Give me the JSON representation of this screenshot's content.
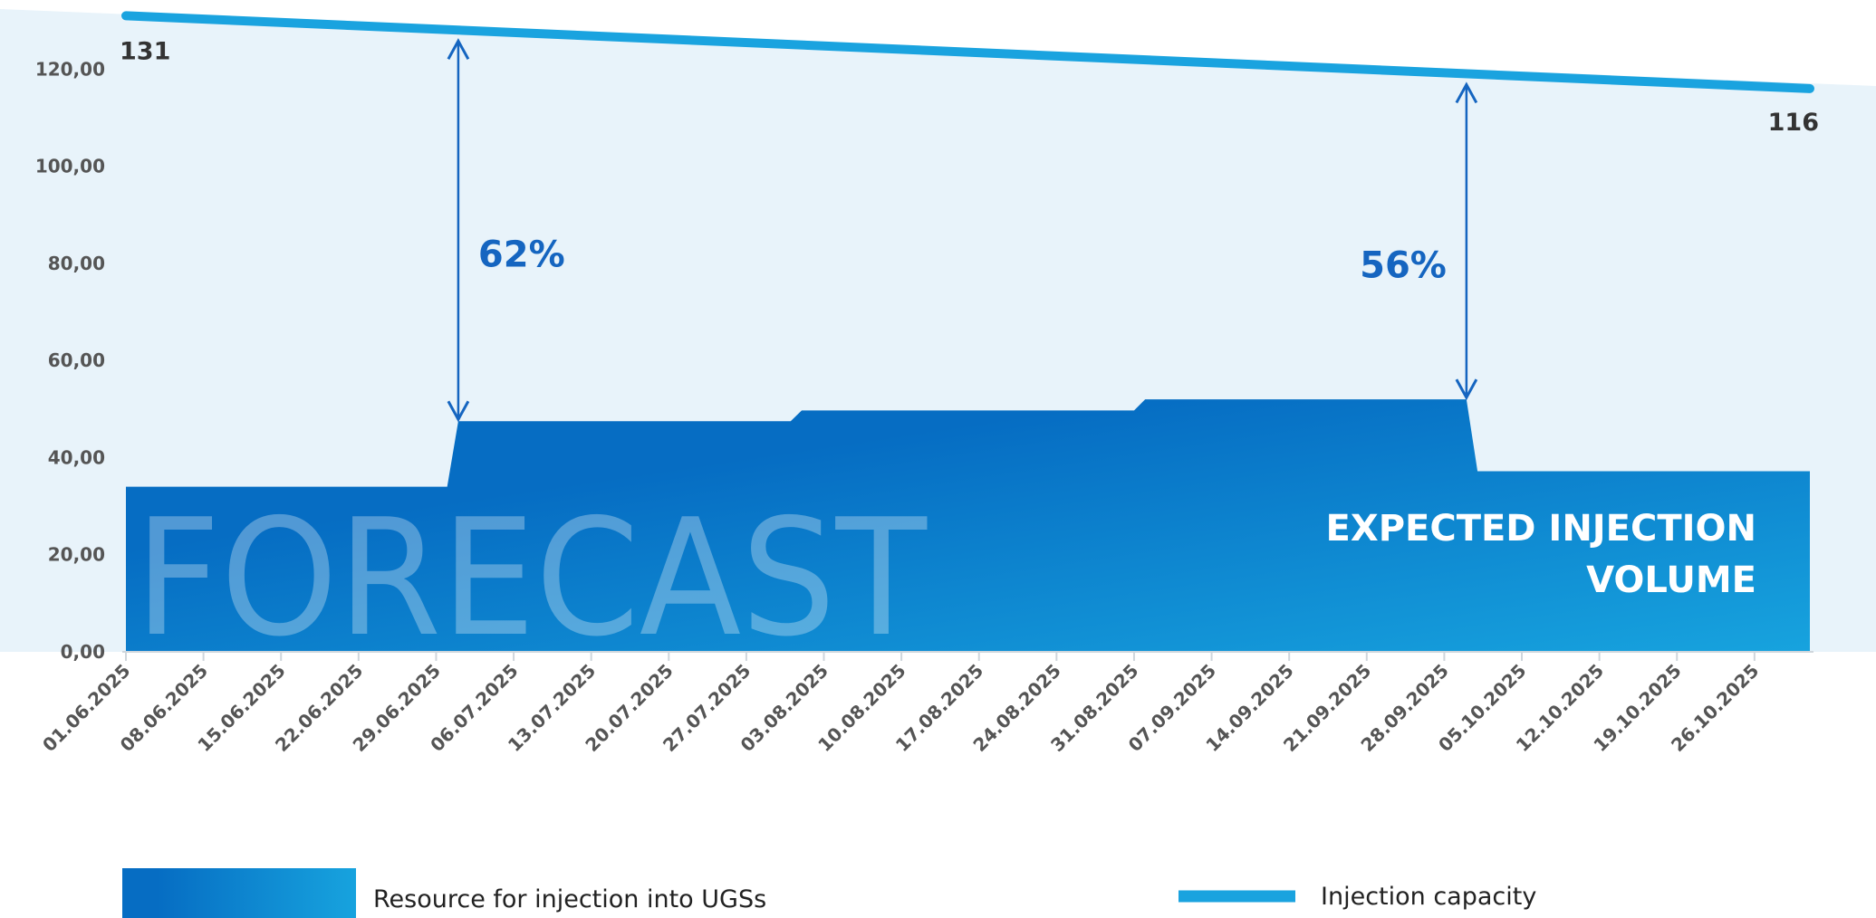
{
  "chart_data": {
    "type": "area",
    "watermark": "FORECAST",
    "area_caption": [
      "EXPECTED INJECTION",
      "VOLUME"
    ],
    "xlim": [
      "01.06.2025",
      "31.10.2025"
    ],
    "xticks": [
      "01.06.2025",
      "08.06.2025",
      "15.06.2025",
      "22.06.2025",
      "29.06.2025",
      "06.07.2025",
      "13.07.2025",
      "20.07.2025",
      "27.07.2025",
      "03.08.2025",
      "10.08.2025",
      "17.08.2025",
      "24.08.2025",
      "31.08.2025",
      "07.09.2025",
      "14.09.2025",
      "21.09.2025",
      "28.09.2025",
      "05.10.2025",
      "12.10.2025",
      "19.10.2025",
      "26.10.2025"
    ],
    "ylim": [
      0,
      134
    ],
    "yticks": [
      {
        "value": 0,
        "label": "0,00"
      },
      {
        "value": 20,
        "label": "20,00"
      },
      {
        "value": 40,
        "label": "40,00"
      },
      {
        "value": 60,
        "label": "60,00"
      },
      {
        "value": 80,
        "label": "80,00"
      },
      {
        "value": 100,
        "label": "100,00"
      },
      {
        "value": 120,
        "label": "120,00"
      }
    ],
    "series": [
      {
        "name": "Resource for injection into UGSs",
        "type": "area",
        "color": [
          "#066dc3",
          "#17a3de"
        ],
        "x": [
          "01.06.2025",
          "30.06.2025",
          "01.07.2025",
          "31.07.2025",
          "01.08.2025",
          "31.08.2025",
          "01.09.2025",
          "30.09.2025",
          "01.10.2025",
          "31.10.2025"
        ],
        "values": [
          34,
          34,
          47.5,
          47.5,
          49.7,
          49.7,
          52,
          52,
          37.2,
          37.2
        ]
      },
      {
        "name": "Injection capacity",
        "type": "line",
        "color": "#1aa3df",
        "x": [
          "01.06.2025",
          "31.10.2025"
        ],
        "values": [
          131,
          116
        ]
      }
    ],
    "annotations": [
      {
        "text": "62%",
        "x": "01.07.2025"
      },
      {
        "text": "56%",
        "x": "30.09.2025"
      }
    ]
  }
}
